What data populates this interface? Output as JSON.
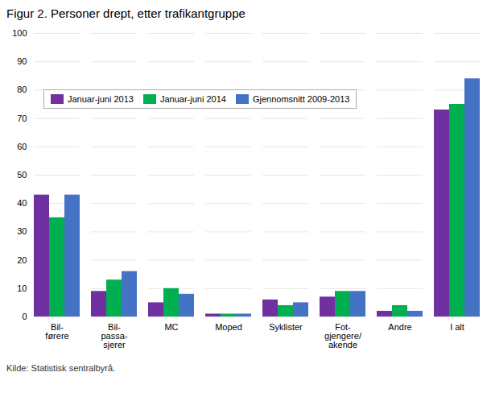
{
  "chart_data": {
    "type": "bar",
    "title": "Figur 2. Personer drept, etter trafikantgruppe",
    "categories": [
      "Bil-\nførere",
      "Bil-\npassa-\nsjerer",
      "MC",
      "Moped",
      "Syklister",
      "Fot-\ngjengere/\nakende",
      "Andre",
      "I alt"
    ],
    "series": [
      {
        "name": "Januar-juni 2013",
        "color": "#7030a0",
        "values": [
          43,
          9,
          5,
          1,
          6,
          7,
          2,
          73
        ]
      },
      {
        "name": "Januar-juni 2014",
        "color": "#00b050",
        "values": [
          35,
          13,
          10,
          1,
          4,
          9,
          4,
          75
        ]
      },
      {
        "name": "Gjennomsnitt 2009-2013",
        "color": "#4472c4",
        "values": [
          43,
          16,
          8,
          1,
          5,
          9,
          2,
          84
        ]
      }
    ],
    "ylim": [
      0,
      100
    ],
    "yticks": [
      0,
      10,
      20,
      30,
      40,
      50,
      60,
      70,
      80,
      90,
      100
    ],
    "grid": true,
    "legend": "upper left",
    "caption": "Kilde: Statistisk sentralbyrå."
  }
}
